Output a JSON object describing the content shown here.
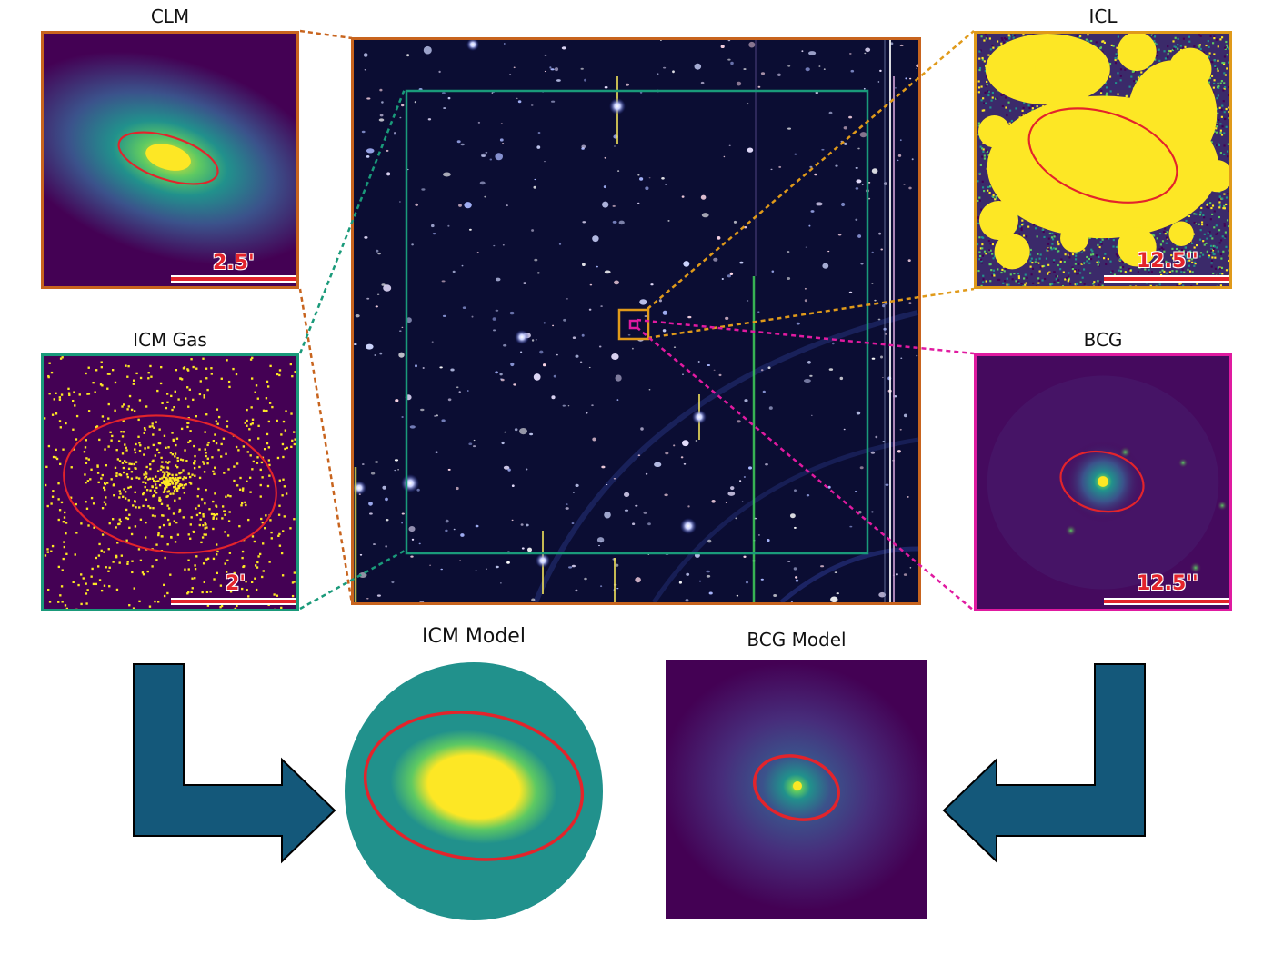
{
  "panels": {
    "clm": {
      "title": "CLM",
      "scale": "2.5'"
    },
    "icm_gas": {
      "title": "ICM Gas",
      "scale": "2'"
    },
    "icl": {
      "title": "ICL",
      "scale": "12.5''"
    },
    "bcg": {
      "title": "BCG",
      "scale": "12.5''"
    }
  },
  "models": {
    "icm": {
      "title": "ICM Model"
    },
    "bcg": {
      "title": "BCG Model"
    }
  },
  "colors": {
    "clm_border": "#c8641e",
    "icm_border": "#1a9a7a",
    "icl_border": "#e09a1a",
    "bcg_border": "#e01aa0",
    "arrow_fill": "#14587a",
    "ellipse": "#e3242b",
    "viridis_dark": "#440154",
    "viridis_teal": "#21918c",
    "viridis_yellow": "#fde725"
  },
  "icons": {
    "left_arrow": "elbow-arrow-right-icon",
    "right_arrow": "elbow-arrow-left-icon"
  }
}
